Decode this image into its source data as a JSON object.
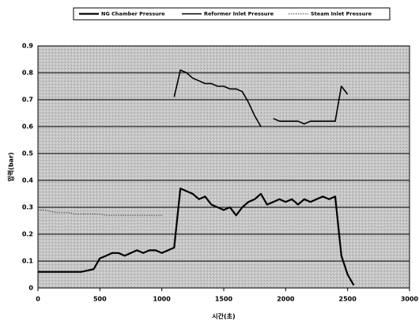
{
  "chart_data": {
    "type": "line",
    "x_label": "시간(초)",
    "y_label": "압력(bar)",
    "x": [
      0,
      50,
      100,
      150,
      200,
      250,
      300,
      350,
      400,
      450,
      500,
      550,
      600,
      650,
      700,
      750,
      800,
      850,
      900,
      950,
      1000,
      1050,
      1100,
      1150,
      1200,
      1250,
      1300,
      1350,
      1400,
      1450,
      1500,
      1550,
      1600,
      1650,
      1700,
      1750,
      1800,
      1850,
      1900,
      1950,
      2000,
      2050,
      2100,
      2150,
      2200,
      2250,
      2300,
      2350,
      2400,
      2450,
      2500,
      2550
    ],
    "series": [
      {
        "name": "NG Chamber Pressure",
        "color": "#000000",
        "values": [
          0.06,
          0.06,
          0.06,
          0.06,
          0.06,
          0.06,
          0.06,
          0.06,
          0.065,
          0.07,
          0.11,
          0.12,
          0.13,
          0.13,
          0.12,
          0.13,
          0.14,
          0.13,
          0.14,
          0.14,
          0.13,
          0.14,
          0.15,
          0.37,
          0.36,
          0.35,
          0.33,
          0.34,
          0.31,
          0.3,
          0.29,
          0.3,
          0.27,
          0.3,
          0.32,
          0.33,
          0.35,
          0.31,
          0.32,
          0.33,
          0.32,
          0.33,
          0.31,
          0.33,
          0.32,
          0.33,
          0.34,
          0.33,
          0.34,
          0.12,
          0.05,
          0.01
        ]
      },
      {
        "name": "Reformer Inlet Pressure",
        "color": "#000000",
        "values": [
          null,
          null,
          null,
          null,
          null,
          null,
          null,
          null,
          null,
          null,
          null,
          null,
          null,
          null,
          null,
          null,
          null,
          null,
          null,
          null,
          null,
          null,
          0.71,
          0.81,
          0.8,
          0.78,
          0.77,
          0.76,
          0.76,
          0.75,
          0.75,
          0.74,
          0.74,
          0.73,
          0.69,
          0.64,
          0.6,
          null,
          0.63,
          0.62,
          0.62,
          0.62,
          0.62,
          0.61,
          0.62,
          0.62,
          0.62,
          0.62,
          0.62,
          0.75,
          0.72,
          null
        ]
      },
      {
        "name": "Steam Inlet Pressure",
        "color": "#555555",
        "values": [
          0.29,
          0.29,
          0.285,
          0.28,
          0.28,
          0.28,
          0.275,
          0.275,
          0.275,
          0.275,
          0.275,
          0.27,
          0.27,
          0.27,
          0.27,
          0.27,
          0.27,
          0.27,
          0.27,
          0.27,
          0.27,
          null,
          null,
          null,
          null,
          null,
          null,
          null,
          null,
          null,
          null,
          null,
          null,
          null,
          null,
          null,
          null,
          null,
          null,
          null,
          null,
          null,
          null,
          null,
          null,
          null,
          null,
          null,
          null,
          null,
          null,
          null
        ]
      }
    ],
    "xlim": [
      0,
      3000
    ],
    "xticks": [
      0,
      500,
      1000,
      1500,
      2000,
      2500,
      3000
    ],
    "ylim": [
      0,
      0.9
    ],
    "yticks": [
      0,
      0.1,
      0.2,
      0.3,
      0.4,
      0.5,
      0.6,
      0.7,
      0.8,
      0.9
    ],
    "grid": true,
    "legend": "top"
  }
}
